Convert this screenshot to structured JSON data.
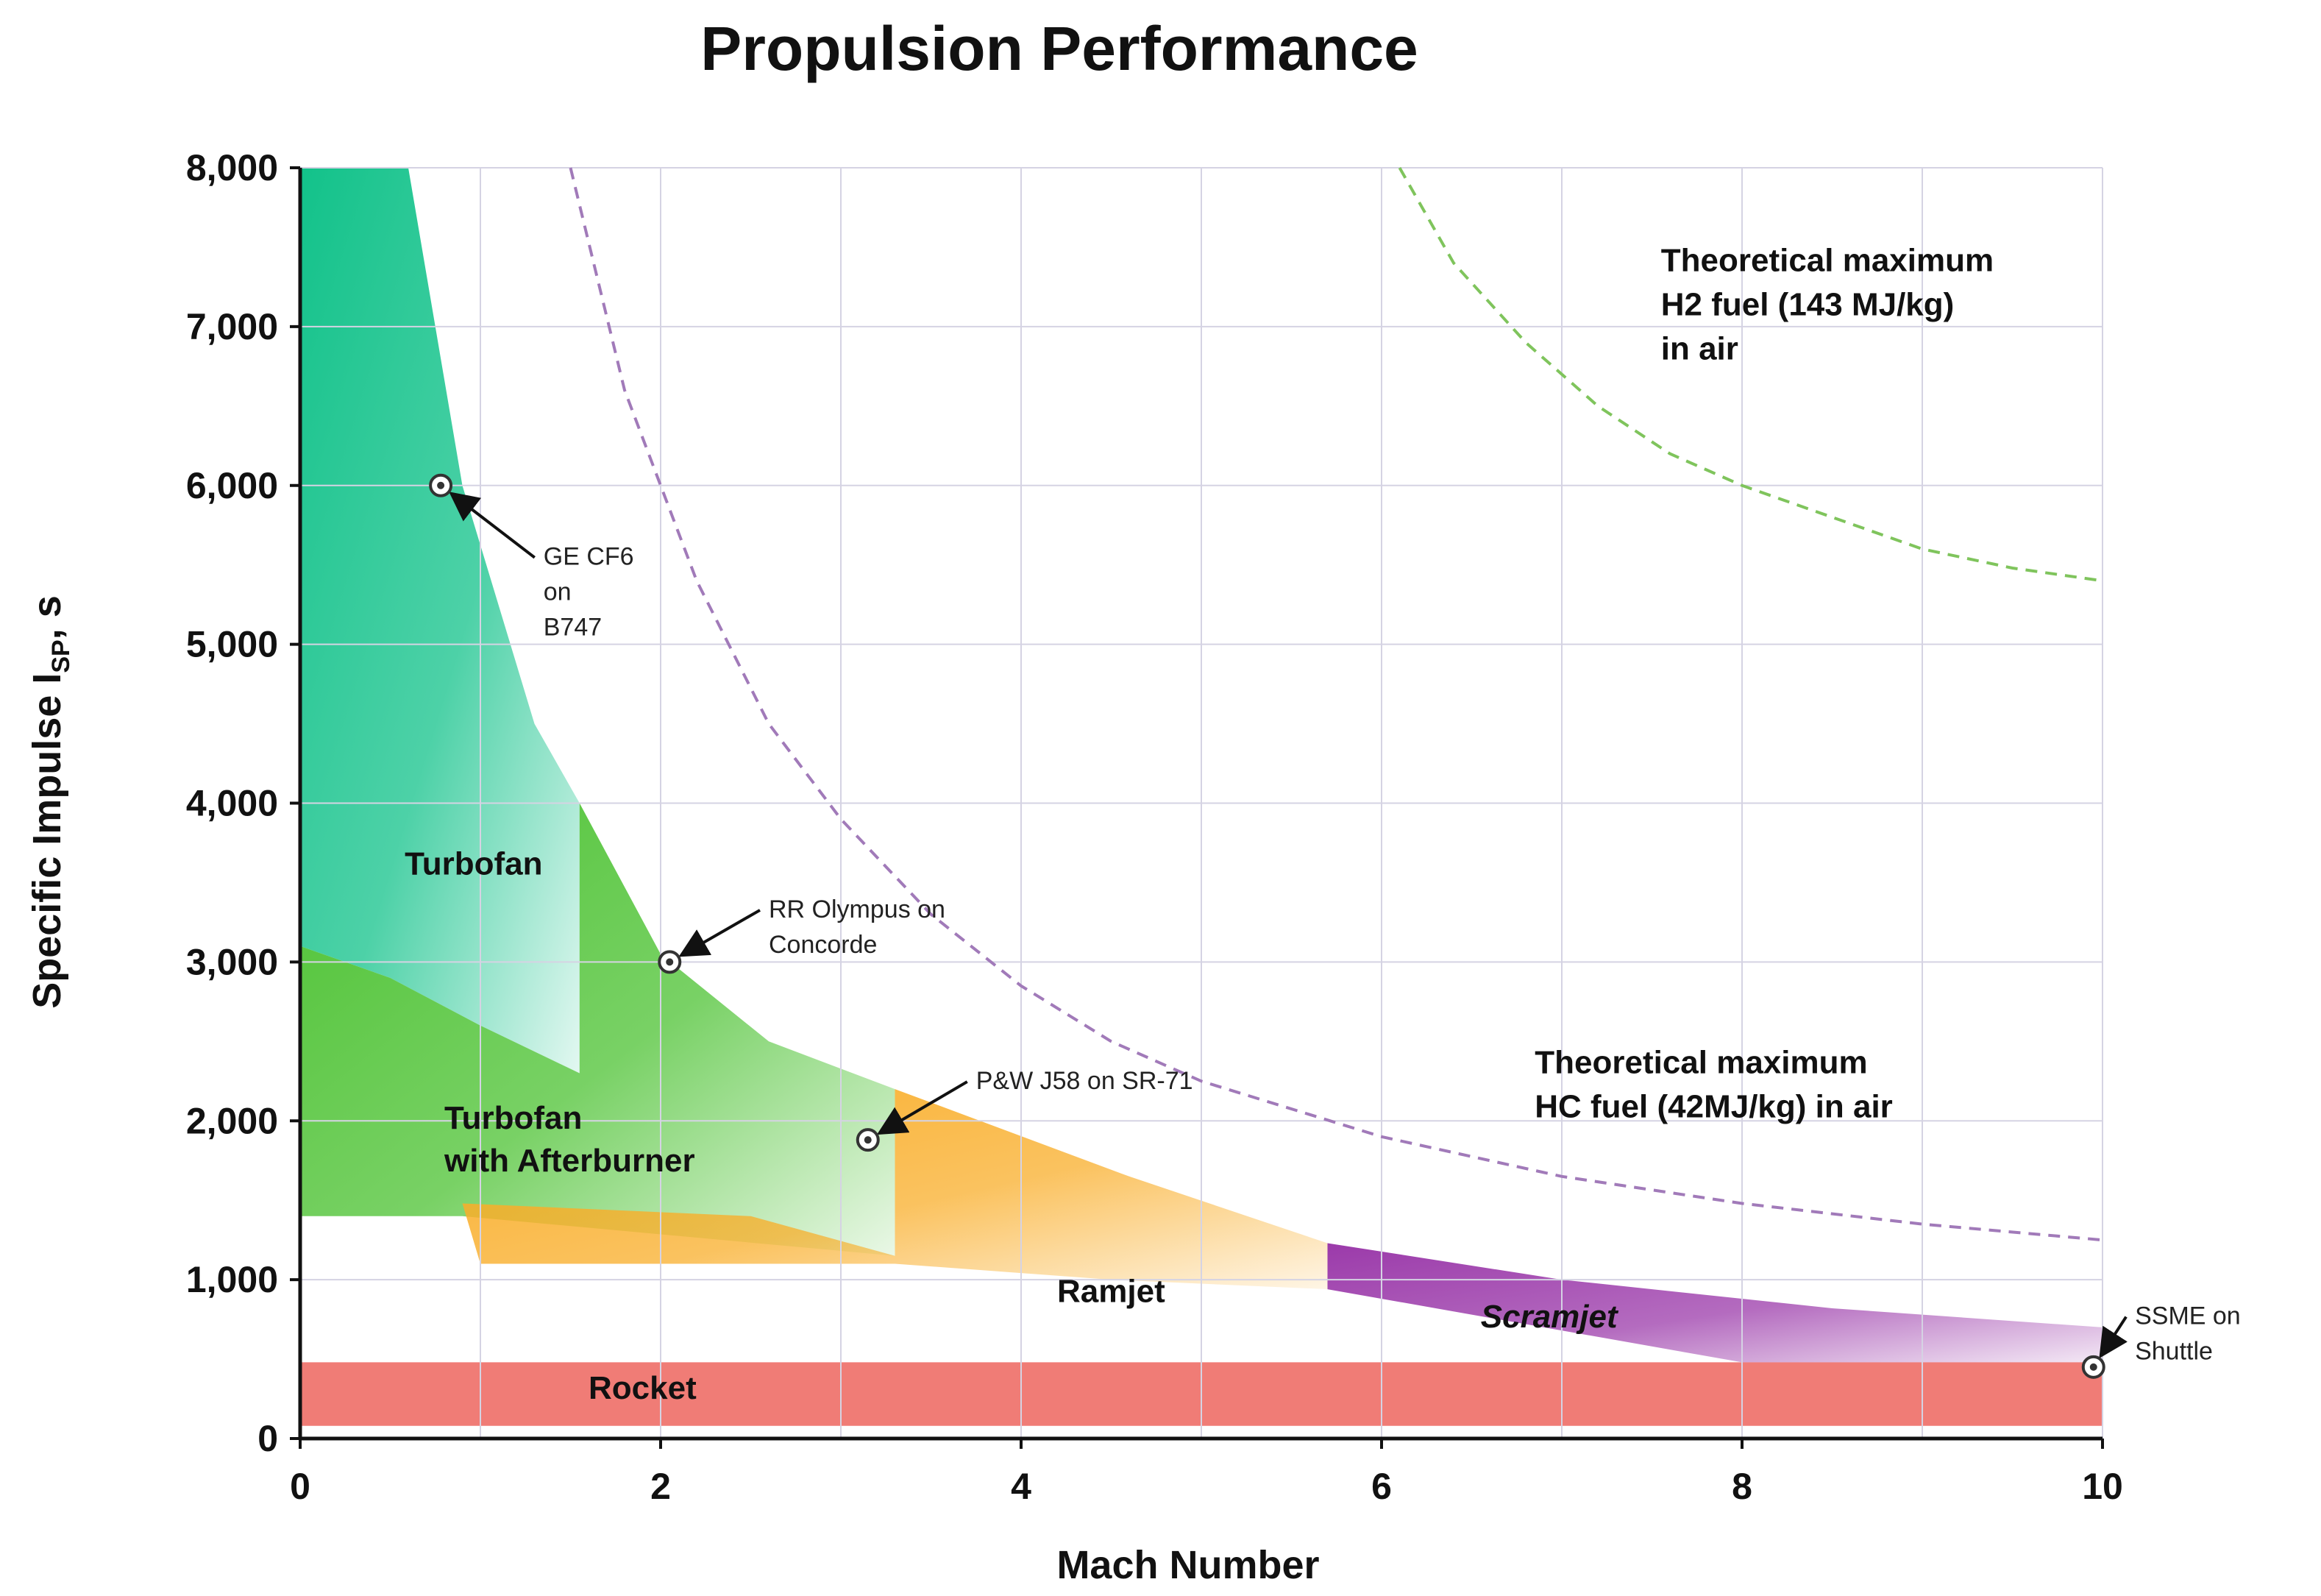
{
  "chart_data": {
    "type": "area",
    "title": "Propulsion Performance",
    "xlabel": "Mach Number",
    "ylabel_main": "Specific Impulse I",
    "ylabel_sub": "SP",
    "ylabel_unit": ", s",
    "xlim": [
      0,
      10
    ],
    "ylim": [
      0,
      8000
    ],
    "x_ticks": [
      {
        "value": 0,
        "label": "0"
      },
      {
        "value": 2,
        "label": "2"
      },
      {
        "value": 4,
        "label": "4"
      },
      {
        "value": 6,
        "label": "6"
      },
      {
        "value": 8,
        "label": "8"
      },
      {
        "value": 10,
        "label": "10"
      }
    ],
    "y_ticks": [
      {
        "value": 0,
        "label": "0"
      },
      {
        "value": 1000,
        "label": "1,000"
      },
      {
        "value": 2000,
        "label": "2,000"
      },
      {
        "value": 3000,
        "label": "3,000"
      },
      {
        "value": 4000,
        "label": "4,000"
      },
      {
        "value": 5000,
        "label": "5,000"
      },
      {
        "value": 6000,
        "label": "6,000"
      },
      {
        "value": 7000,
        "label": "7,000"
      },
      {
        "value": 8000,
        "label": "8,000"
      }
    ],
    "grid": true,
    "grid_x_values": [
      0,
      1,
      2,
      3,
      4,
      5,
      6,
      7,
      8,
      9,
      10
    ],
    "grid_y_values": [
      0,
      1000,
      2000,
      3000,
      4000,
      5000,
      6000,
      7000,
      8000
    ],
    "regions": [
      {
        "label": "Rocket",
        "color": "#f07c76",
        "points": [
          [
            0,
            80
          ],
          [
            10,
            80
          ],
          [
            10,
            480
          ],
          [
            0,
            480
          ]
        ],
        "label_at": [
          1.6,
          250
        ],
        "label_style": "bold"
      },
      {
        "label": "Turbofan",
        "color": "#12c28a",
        "points": [
          [
            0,
            8000
          ],
          [
            0.6,
            8000
          ],
          [
            0.9,
            6000
          ],
          [
            1.3,
            4500
          ],
          [
            1.55,
            4000
          ],
          [
            1.55,
            2300
          ],
          [
            1.0,
            2600
          ],
          [
            0.5,
            2900
          ],
          [
            0,
            3100
          ]
        ],
        "label_at": [
          0.58,
          3550
        ],
        "label_style": "bold"
      },
      {
        "label": "Turbofan with Afterburner",
        "lines": [
          "Turbofan",
          "with Afterburner"
        ],
        "color": "#4cc232",
        "points": [
          [
            1.55,
            4000
          ],
          [
            2.0,
            3050
          ],
          [
            2.6,
            2500
          ],
          [
            3.3,
            2200
          ],
          [
            3.3,
            1150
          ],
          [
            0.9,
            1400
          ],
          [
            0,
            1400
          ],
          [
            0,
            3100
          ],
          [
            0.5,
            2900
          ],
          [
            1.0,
            2600
          ],
          [
            1.55,
            2300
          ]
        ],
        "label_at": [
          0.8,
          1950
        ],
        "label_style": "bold"
      },
      {
        "label": "Ramjet",
        "color": "#f9ae2a",
        "points": [
          [
            3.3,
            2200
          ],
          [
            4.6,
            1650
          ],
          [
            5.7,
            1230
          ],
          [
            5.7,
            940
          ],
          [
            4.5,
            1000
          ],
          [
            3.3,
            1100
          ],
          [
            1.0,
            1100
          ],
          [
            0.9,
            1480
          ],
          [
            2.5,
            1400
          ],
          [
            3.3,
            1150
          ]
        ],
        "label_at": [
          4.2,
          860
        ],
        "label_style": "bold"
      },
      {
        "label": "Scramjet",
        "color": "#9b3aaa",
        "points": [
          [
            5.7,
            1230
          ],
          [
            7.0,
            1000
          ],
          [
            8.5,
            820
          ],
          [
            10,
            700
          ],
          [
            10,
            480
          ],
          [
            8.0,
            480
          ],
          [
            6.5,
            780
          ],
          [
            5.7,
            940
          ]
        ],
        "label_at": [
          6.55,
          700
        ],
        "label_style": "bolditalic"
      }
    ],
    "theoretical_curves": [
      {
        "name": "Theoretical maximum H2 fuel (143 MJ/kg) in air",
        "lines": [
          "Theoretical maximum",
          "H2 fuel (143 MJ/kg)",
          "in air"
        ],
        "color": "#7fc45c",
        "points": [
          [
            6.1,
            8000
          ],
          [
            6.4,
            7400
          ],
          [
            6.8,
            6900
          ],
          [
            7.2,
            6500
          ],
          [
            7.6,
            6200
          ],
          [
            8.0,
            6000
          ],
          [
            8.5,
            5800
          ],
          [
            9.0,
            5600
          ],
          [
            9.5,
            5480
          ],
          [
            10,
            5400
          ]
        ],
        "label_at": [
          7.55,
          7350
        ]
      },
      {
        "name": "Theoretical maximum HC fuel (42MJ/kg) in air",
        "lines": [
          "Theoretical maximum",
          "HC fuel (42MJ/kg) in air"
        ],
        "color": "#a17ab9",
        "points": [
          [
            1.5,
            8000
          ],
          [
            1.8,
            6600
          ],
          [
            2.2,
            5400
          ],
          [
            2.6,
            4500
          ],
          [
            3.0,
            3900
          ],
          [
            3.5,
            3300
          ],
          [
            4.0,
            2850
          ],
          [
            4.5,
            2500
          ],
          [
            5.0,
            2250
          ],
          [
            6.0,
            1900
          ],
          [
            7.0,
            1650
          ],
          [
            8.0,
            1480
          ],
          [
            9.0,
            1350
          ],
          [
            10,
            1250
          ]
        ],
        "label_at": [
          6.85,
          2300
        ]
      }
    ],
    "annotations": [
      {
        "name": "GE CF6 on B747",
        "lines": [
          "GE CF6",
          "on",
          "B747"
        ],
        "point": [
          0.78,
          6000
        ],
        "text_at": [
          1.35,
          5500
        ]
      },
      {
        "name": "RR Olympus on Concorde",
        "lines": [
          "RR Olympus on",
          "Concorde"
        ],
        "point": [
          2.05,
          3000
        ],
        "text_at": [
          2.6,
          3280
        ]
      },
      {
        "name": "P&W J58 on SR-71",
        "lines": [
          "P&W J58 on SR-71"
        ],
        "point": [
          3.15,
          1880
        ],
        "text_at": [
          3.75,
          2200
        ]
      },
      {
        "name": "SSME on Shuttle",
        "lines": [
          "SSME on",
          "Shuttle"
        ],
        "point": [
          9.95,
          450
        ],
        "text_at": [
          10.18,
          720
        ]
      }
    ]
  }
}
